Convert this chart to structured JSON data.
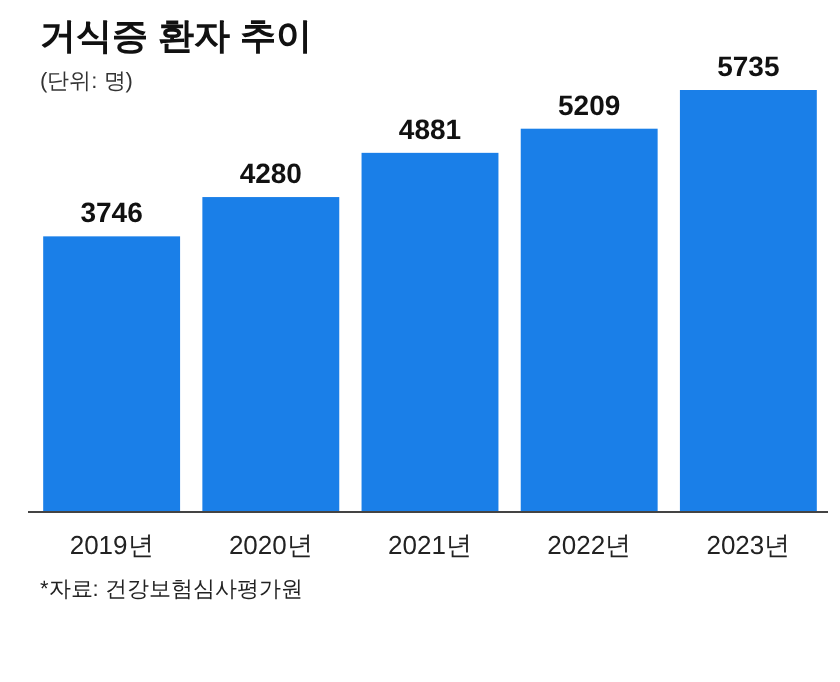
{
  "chart_data": {
    "type": "bar",
    "title": "거식증 환자 추이",
    "subtitle": "(단위: 명)",
    "categories": [
      "2019년",
      "2020년",
      "2021년",
      "2022년",
      "2023년"
    ],
    "values": [
      3746,
      4280,
      4881,
      5209,
      5735
    ],
    "color": "#1a7fe8",
    "data_labels": true,
    "annotations": [
      "*자료: 건강보험심사평가원"
    ]
  }
}
